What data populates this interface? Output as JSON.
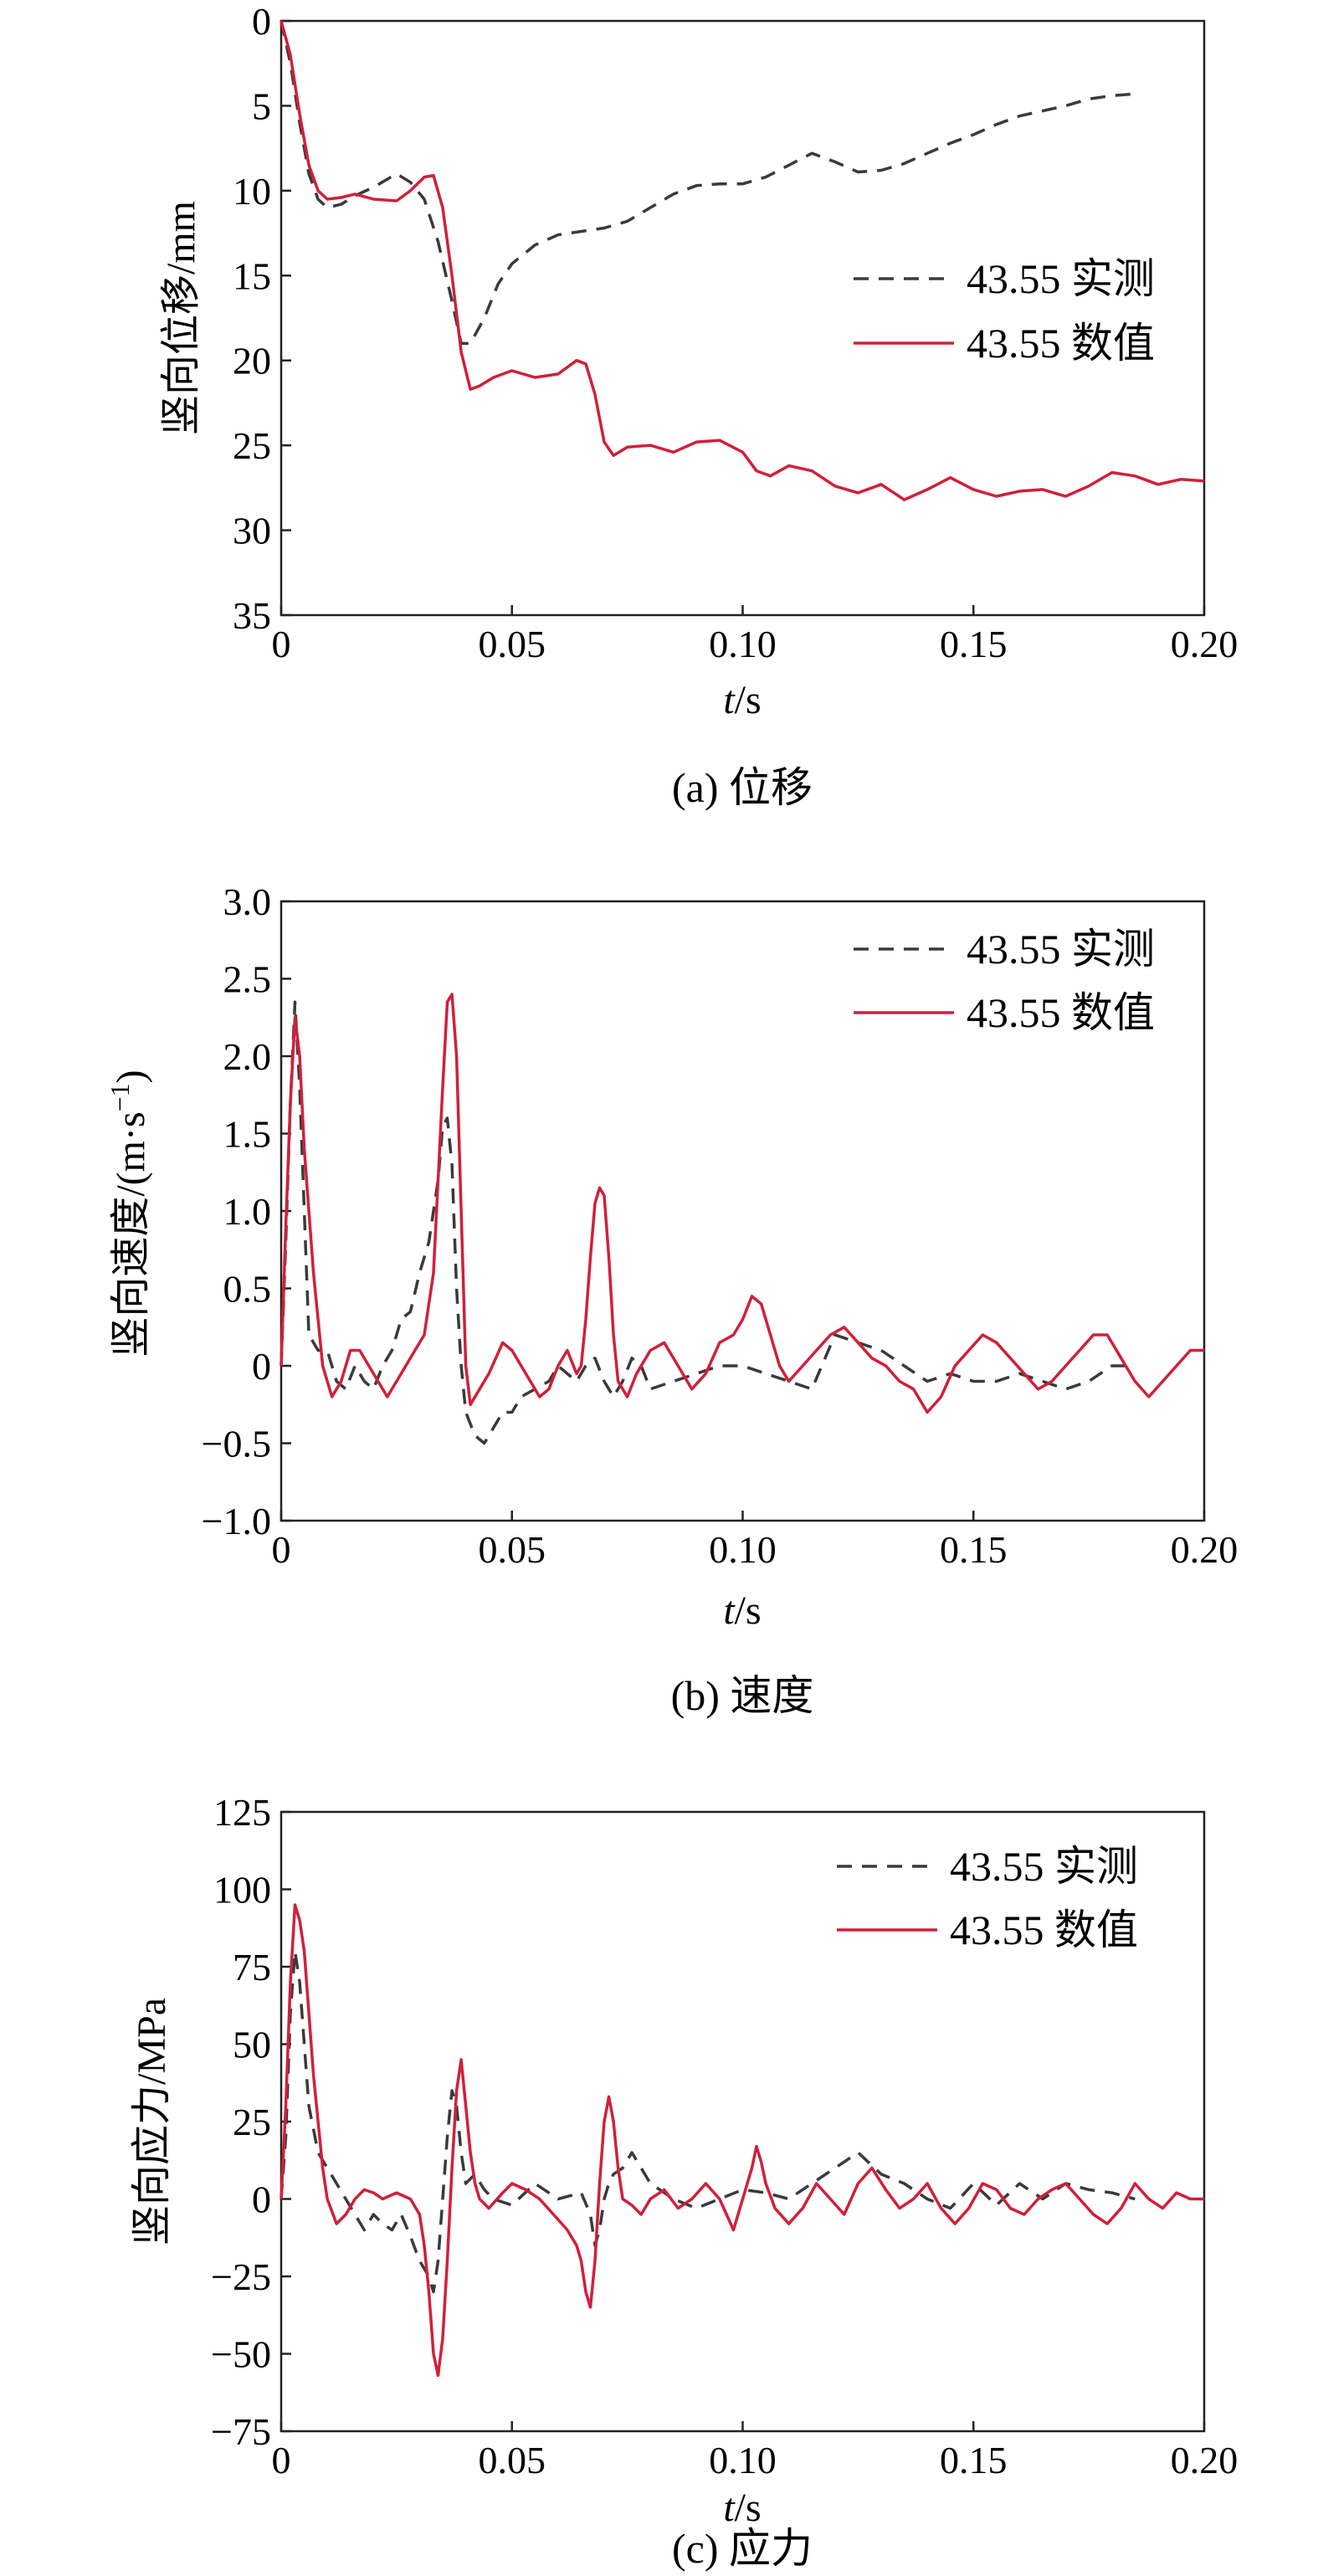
{
  "colors": {
    "measured": "#3a3a3a",
    "numerical": "#d0203a"
  },
  "chart_data": [
    {
      "type": "line",
      "caption": "(a) 位移",
      "xlabel_italic": "t",
      "xlabel_rest": "/s",
      "ylabel": "竖向位移/mm",
      "xlim": [
        0,
        0.2
      ],
      "ylim": [
        0,
        35
      ],
      "y_inverted": true,
      "xticks": [
        0,
        0.05,
        0.1,
        0.15,
        0.2
      ],
      "xtick_labels": [
        "0",
        "0.05",
        "0.10",
        "0.15",
        "0.20"
      ],
      "yticks": [
        0,
        5,
        10,
        15,
        20,
        25,
        30,
        35
      ],
      "ytick_labels": [
        "0",
        "5",
        "10",
        "15",
        "20",
        "25",
        "30",
        "35"
      ],
      "legend_position": "upper-right",
      "series": [
        {
          "name": "43.55 实测",
          "style": "dashed",
          "x": [
            0,
            0.002,
            0.004,
            0.006,
            0.008,
            0.01,
            0.013,
            0.016,
            0.02,
            0.025,
            0.028,
            0.031,
            0.034,
            0.037,
            0.039,
            0.041,
            0.044,
            0.047,
            0.05,
            0.055,
            0.06,
            0.065,
            0.07,
            0.075,
            0.08,
            0.085,
            0.09,
            0.095,
            0.1,
            0.105,
            0.11,
            0.115,
            0.12,
            0.125,
            0.13,
            0.135,
            0.14,
            0.145,
            0.15,
            0.155,
            0.16,
            0.165,
            0.17,
            0.175,
            0.18,
            0.185
          ],
          "y": [
            0,
            2.5,
            6,
            9,
            10.5,
            11,
            10.8,
            10.3,
            9.8,
            9,
            9.5,
            10.5,
            13,
            16.5,
            19,
            19,
            17.5,
            15.5,
            14.3,
            13.2,
            12.6,
            12.4,
            12.2,
            11.8,
            11,
            10.2,
            9.7,
            9.6,
            9.6,
            9.2,
            8.5,
            7.8,
            8.3,
            8.9,
            8.8,
            8.4,
            7.8,
            7.2,
            6.7,
            6.1,
            5.6,
            5.3,
            5,
            4.6,
            4.4,
            4.3
          ]
        },
        {
          "name": "43.55 数值",
          "style": "solid",
          "x": [
            0,
            0.002,
            0.004,
            0.006,
            0.008,
            0.01,
            0.013,
            0.016,
            0.02,
            0.025,
            0.028,
            0.031,
            0.033,
            0.035,
            0.037,
            0.039,
            0.041,
            0.043,
            0.046,
            0.05,
            0.055,
            0.06,
            0.064,
            0.066,
            0.068,
            0.07,
            0.072,
            0.075,
            0.08,
            0.085,
            0.09,
            0.095,
            0.1,
            0.103,
            0.106,
            0.11,
            0.115,
            0.12,
            0.125,
            0.13,
            0.135,
            0.14,
            0.145,
            0.15,
            0.155,
            0.16,
            0.165,
            0.17,
            0.175,
            0.18,
            0.185,
            0.19,
            0.195,
            0.2
          ],
          "y": [
            0,
            2,
            5.5,
            8.5,
            10,
            10.5,
            10.4,
            10.2,
            10.5,
            10.6,
            10,
            9.2,
            9.1,
            11,
            15,
            19.5,
            21.7,
            21.5,
            21,
            20.6,
            21,
            20.8,
            20,
            20.2,
            22,
            24.8,
            25.6,
            25.1,
            25,
            25.4,
            24.8,
            24.7,
            25.4,
            26.5,
            26.8,
            26.2,
            26.5,
            27.4,
            27.8,
            27.3,
            28.2,
            27.6,
            26.9,
            27.6,
            28,
            27.7,
            27.6,
            28,
            27.4,
            26.6,
            26.8,
            27.3,
            27,
            27.1
          ]
        }
      ]
    },
    {
      "type": "line",
      "caption": "(b) 速度",
      "xlabel_italic": "t",
      "xlabel_rest": "/s",
      "ylabel_main": "竖向速度/(m·s",
      "ylabel_sup": "−1",
      "ylabel_end": ")",
      "xlim": [
        0,
        0.2
      ],
      "ylim": [
        -1.0,
        3.0
      ],
      "xticks": [
        0,
        0.05,
        0.1,
        0.15,
        0.2
      ],
      "xtick_labels": [
        "0",
        "0.05",
        "0.10",
        "0.15",
        "0.20"
      ],
      "yticks": [
        -1.0,
        -0.5,
        0,
        0.5,
        1.0,
        1.5,
        2.0,
        2.5,
        3.0
      ],
      "ytick_labels": [
        "−1.0",
        "−0.5",
        "0",
        "0.5",
        "1.0",
        "1.5",
        "2.0",
        "2.5",
        "3.0"
      ],
      "legend_position": "upper-right",
      "series": [
        {
          "name": "43.55 实测",
          "style": "dashed",
          "x": [
            0,
            0.001,
            0.002,
            0.003,
            0.004,
            0.005,
            0.006,
            0.008,
            0.01,
            0.012,
            0.014,
            0.016,
            0.018,
            0.02,
            0.022,
            0.024,
            0.026,
            0.028,
            0.03,
            0.032,
            0.034,
            0.035,
            0.036,
            0.037,
            0.038,
            0.039,
            0.04,
            0.042,
            0.044,
            0.046,
            0.048,
            0.05,
            0.052,
            0.055,
            0.058,
            0.06,
            0.062,
            0.064,
            0.066,
            0.068,
            0.07,
            0.072,
            0.074,
            0.076,
            0.078,
            0.08,
            0.085,
            0.09,
            0.095,
            0.1,
            0.105,
            0.11,
            0.115,
            0.12,
            0.125,
            0.13,
            0.135,
            0.14,
            0.145,
            0.15,
            0.155,
            0.16,
            0.165,
            0.17,
            0.175,
            0.18,
            0.185
          ],
          "y": [
            0,
            0.8,
            1.7,
            2.35,
            1.8,
            1,
            0.2,
            0.1,
            0.1,
            -0.1,
            -0.15,
            0,
            -0.1,
            -0.15,
            0,
            0.1,
            0.3,
            0.35,
            0.6,
            0.8,
            1.2,
            1.55,
            1.6,
            1.3,
            0.5,
            0,
            -0.3,
            -0.45,
            -0.5,
            -0.4,
            -0.3,
            -0.3,
            -0.2,
            -0.15,
            -0.1,
            0,
            -0.05,
            -0.1,
            0,
            0.05,
            -0.1,
            -0.2,
            -0.1,
            0.05,
            0,
            -0.15,
            -0.1,
            -0.05,
            0,
            0,
            -0.05,
            -0.1,
            -0.15,
            0.2,
            0.15,
            0.1,
            0,
            -0.1,
            -0.05,
            -0.1,
            -0.1,
            -0.05,
            -0.1,
            -0.15,
            -0.1,
            0,
            0
          ]
        },
        {
          "name": "43.55 数值",
          "style": "solid",
          "x": [
            0,
            0.001,
            0.002,
            0.003,
            0.004,
            0.005,
            0.007,
            0.009,
            0.011,
            0.013,
            0.015,
            0.017,
            0.019,
            0.021,
            0.023,
            0.025,
            0.027,
            0.029,
            0.031,
            0.033,
            0.034,
            0.035,
            0.036,
            0.037,
            0.038,
            0.039,
            0.04,
            0.041,
            0.043,
            0.045,
            0.048,
            0.05,
            0.052,
            0.054,
            0.056,
            0.058,
            0.06,
            0.062,
            0.064,
            0.065,
            0.066,
            0.067,
            0.068,
            0.069,
            0.07,
            0.071,
            0.072,
            0.073,
            0.075,
            0.077,
            0.08,
            0.083,
            0.086,
            0.089,
            0.092,
            0.095,
            0.098,
            0.1,
            0.102,
            0.104,
            0.106,
            0.108,
            0.11,
            0.113,
            0.116,
            0.119,
            0.122,
            0.125,
            0.128,
            0.131,
            0.134,
            0.137,
            0.14,
            0.143,
            0.146,
            0.149,
            0.152,
            0.155,
            0.158,
            0.161,
            0.164,
            0.167,
            0.17,
            0.173,
            0.176,
            0.179,
            0.182,
            0.185,
            0.188,
            0.191,
            0.194,
            0.197,
            0.2
          ],
          "y": [
            0,
            0.9,
            1.7,
            2.25,
            2,
            1.4,
            0.6,
            0,
            -0.2,
            -0.1,
            0.1,
            0.1,
            0,
            -0.1,
            -0.2,
            -0.1,
            0,
            0.1,
            0.2,
            0.6,
            1.2,
            1.8,
            2.35,
            2.4,
            2,
            1,
            0,
            -0.25,
            -0.15,
            -0.05,
            0.15,
            0.1,
            0,
            -0.1,
            -0.2,
            -0.15,
            0,
            0.1,
            -0.05,
            0,
            0.3,
            0.7,
            1.05,
            1.15,
            1.1,
            0.7,
            0.2,
            -0.1,
            -0.2,
            -0.05,
            0.1,
            0.15,
            0,
            -0.15,
            -0.05,
            0.15,
            0.2,
            0.3,
            0.45,
            0.4,
            0.2,
            0,
            -0.1,
            0,
            0.1,
            0.2,
            0.25,
            0.15,
            0.05,
            0,
            -0.1,
            -0.15,
            -0.3,
            -0.2,
            0,
            0.1,
            0.2,
            0.15,
            0.05,
            -0.05,
            -0.15,
            -0.1,
            0,
            0.1,
            0.2,
            0.2,
            0.05,
            -0.1,
            -0.2,
            -0.1,
            0,
            0.1,
            0.1
          ]
        }
      ]
    },
    {
      "type": "line",
      "caption": "(c) 应力",
      "xlabel_italic": "t",
      "xlabel_rest": "/s",
      "ylabel": "竖向应力/MPa",
      "xlim": [
        0,
        0.2
      ],
      "ylim": [
        -75,
        125
      ],
      "xticks": [
        0,
        0.05,
        0.1,
        0.15,
        0.2
      ],
      "xtick_labels": [
        "0",
        "0.05",
        "0.10",
        "0.15",
        "0.20"
      ],
      "yticks": [
        -75,
        -50,
        -25,
        0,
        25,
        50,
        75,
        100,
        125
      ],
      "ytick_labels": [
        "−75",
        "−50",
        "−25",
        "0",
        "25",
        "50",
        "75",
        "100",
        "125"
      ],
      "legend_position": "upper-right",
      "series": [
        {
          "name": "43.55 实测",
          "style": "dashed",
          "x": [
            0,
            0.001,
            0.002,
            0.003,
            0.004,
            0.005,
            0.006,
            0.008,
            0.01,
            0.012,
            0.014,
            0.016,
            0.018,
            0.02,
            0.022,
            0.024,
            0.026,
            0.028,
            0.03,
            0.032,
            0.033,
            0.034,
            0.035,
            0.036,
            0.037,
            0.038,
            0.039,
            0.04,
            0.042,
            0.044,
            0.046,
            0.05,
            0.055,
            0.06,
            0.065,
            0.067,
            0.068,
            0.069,
            0.07,
            0.071,
            0.072,
            0.074,
            0.076,
            0.078,
            0.08,
            0.085,
            0.09,
            0.095,
            0.1,
            0.105,
            0.11,
            0.115,
            0.12,
            0.125,
            0.13,
            0.135,
            0.14,
            0.145,
            0.15,
            0.155,
            0.16,
            0.165,
            0.17,
            0.175,
            0.18,
            0.185
          ],
          "y": [
            0,
            20,
            60,
            80,
            70,
            50,
            30,
            15,
            10,
            5,
            0,
            -5,
            -10,
            -5,
            -8,
            -10,
            -5,
            -12,
            -20,
            -25,
            -30,
            -20,
            0,
            20,
            35,
            30,
            15,
            5,
            8,
            3,
            0,
            -2,
            5,
            0,
            2,
            -5,
            -15,
            -10,
            0,
            5,
            8,
            10,
            15,
            10,
            5,
            0,
            -3,
            0,
            3,
            2,
            0,
            5,
            10,
            15,
            8,
            5,
            0,
            -3,
            5,
            -2,
            5,
            0,
            5,
            3,
            2,
            0
          ]
        },
        {
          "name": "43.55 数值",
          "style": "solid",
          "x": [
            0,
            0.001,
            0.002,
            0.003,
            0.004,
            0.005,
            0.006,
            0.007,
            0.008,
            0.009,
            0.01,
            0.012,
            0.014,
            0.016,
            0.018,
            0.02,
            0.022,
            0.025,
            0.028,
            0.03,
            0.031,
            0.032,
            0.033,
            0.034,
            0.035,
            0.036,
            0.037,
            0.038,
            0.039,
            0.04,
            0.041,
            0.042,
            0.043,
            0.045,
            0.048,
            0.05,
            0.053,
            0.056,
            0.059,
            0.062,
            0.064,
            0.065,
            0.066,
            0.067,
            0.068,
            0.069,
            0.07,
            0.071,
            0.072,
            0.073,
            0.074,
            0.076,
            0.078,
            0.08,
            0.083,
            0.086,
            0.089,
            0.092,
            0.095,
            0.098,
            0.1,
            0.102,
            0.103,
            0.104,
            0.105,
            0.107,
            0.11,
            0.113,
            0.116,
            0.119,
            0.122,
            0.125,
            0.128,
            0.131,
            0.134,
            0.137,
            0.14,
            0.143,
            0.146,
            0.149,
            0.152,
            0.155,
            0.158,
            0.161,
            0.164,
            0.167,
            0.17,
            0.173,
            0.176,
            0.179,
            0.182,
            0.185,
            0.188,
            0.191,
            0.194,
            0.197,
            0.2
          ],
          "y": [
            0,
            30,
            70,
            95,
            90,
            80,
            60,
            40,
            25,
            10,
            0,
            -8,
            -5,
            0,
            3,
            2,
            0,
            2,
            0,
            -5,
            -15,
            -30,
            -50,
            -57,
            -45,
            -20,
            10,
            35,
            45,
            30,
            15,
            5,
            0,
            -3,
            2,
            5,
            3,
            0,
            -5,
            -10,
            -15,
            -20,
            -30,
            -35,
            -20,
            5,
            25,
            33,
            25,
            10,
            0,
            -2,
            -5,
            0,
            3,
            -3,
            0,
            5,
            0,
            -10,
            0,
            10,
            17,
            12,
            5,
            -3,
            -8,
            -3,
            5,
            0,
            -5,
            5,
            10,
            3,
            -3,
            0,
            5,
            -3,
            -8,
            -3,
            5,
            3,
            -3,
            -5,
            0,
            3,
            5,
            0,
            -5,
            -8,
            -3,
            5,
            0,
            -3,
            2,
            0,
            0
          ]
        }
      ]
    }
  ]
}
